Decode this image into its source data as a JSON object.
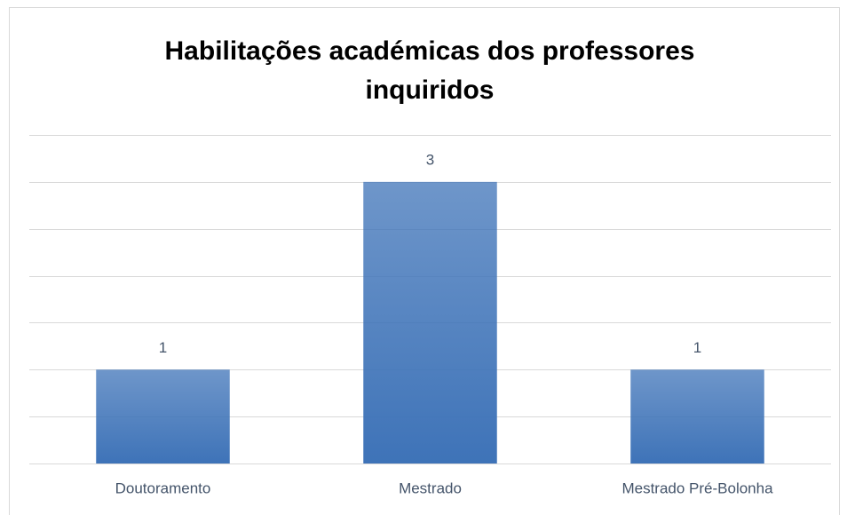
{
  "chart_data": {
    "type": "bar",
    "title": "Habilitações académicas dos professores inquiridos",
    "categories": [
      "Doutoramento",
      "Mestrado",
      "Mestrado Pré-Bolonha"
    ],
    "values": [
      1,
      3,
      1
    ],
    "color": "#3e73b8",
    "ylim": [
      0,
      3.5
    ],
    "yticks": [
      0,
      0.5,
      1,
      1.5,
      2,
      2.5,
      3,
      3.5
    ],
    "grid": true
  }
}
